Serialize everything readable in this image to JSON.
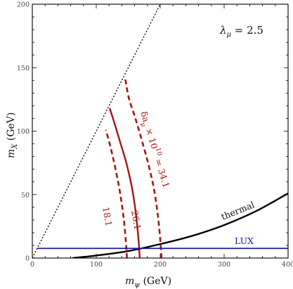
{
  "chart_data": {
    "type": "line",
    "xlabel": "m_ψ (GeV)",
    "ylabel": "m_X (GeV)",
    "xlim": [
      0,
      400
    ],
    "ylim": [
      0,
      200
    ],
    "x_ticks": [
      "0",
      "100",
      "200",
      "300",
      "400"
    ],
    "y_ticks": [
      "0",
      "50",
      "100",
      "150",
      "200"
    ],
    "annotation_lambda": "λ_μ = 2.5",
    "annotation_delta": "δa_μ × 10^10 = 34.1",
    "colors": {
      "frame": "#000000",
      "red": "#a81414",
      "lux": "#1a1aa6",
      "thermal": "#000000"
    },
    "series": [
      {
        "label": "18.1",
        "style": "dashed",
        "color": "#a81414",
        "x": [
          148,
          146,
          142,
          136,
          128,
          121,
          115
        ],
        "y": [
          0,
          15,
          35,
          55,
          75,
          90,
          101
        ]
      },
      {
        "label": "26.1",
        "style": "solid",
        "color": "#a81414",
        "x": [
          168,
          166,
          162,
          156,
          147,
          137,
          128,
          121
        ],
        "y": [
          0,
          15,
          35,
          55,
          75,
          92,
          107,
          118
        ]
      },
      {
        "label": "34.1",
        "style": "dashed",
        "color": "#a81414",
        "x": [
          202,
          200,
          196,
          190,
          181,
          170,
          160,
          151,
          145
        ],
        "y": [
          0,
          15,
          35,
          55,
          75,
          95,
          112,
          126,
          142
        ]
      },
      {
        "label": "thermal",
        "style": "solid",
        "color": "#000000",
        "x": [
          63,
          100,
          150,
          200,
          250,
          300,
          350,
          400
        ],
        "y": [
          0,
          2,
          5.5,
          11,
          17.5,
          26,
          37,
          51
        ]
      },
      {
        "label": "LUX",
        "style": "solid",
        "color": "#1a1aa6",
        "x": [
          8,
          400
        ],
        "y": [
          7.6,
          7.6
        ]
      },
      {
        "label": "",
        "style": "dotted",
        "color": "#000000",
        "x": [
          0,
          200
        ],
        "y": [
          0,
          200
        ]
      }
    ]
  }
}
